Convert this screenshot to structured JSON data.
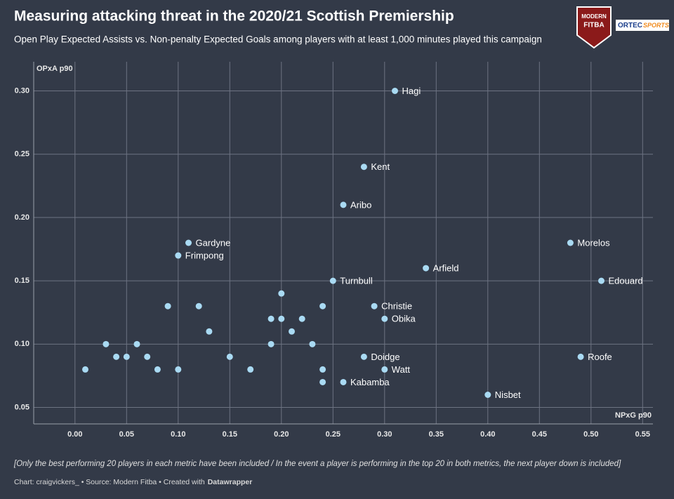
{
  "chart_data": {
    "type": "scatter",
    "title": "Measuring attacking threat in the 2020/21 Scottish Premiership",
    "subtitle": "Open Play Expected Assists vs. Non-penalty Expected Goals among players with at least 1,000 minutes played this campaign",
    "x_label": "NPxG p90",
    "y_label": "OPxA p90",
    "x": [
      0.31,
      0.28,
      0.26,
      0.11,
      0.1,
      0.48,
      0.34,
      0.25,
      0.51,
      0.29,
      0.3,
      0.28,
      0.3,
      0.26,
      0.4,
      0.49,
      0.01,
      0.03,
      0.04,
      0.05,
      0.06,
      0.07,
      0.08,
      0.09,
      0.1,
      0.12,
      0.13,
      0.15,
      0.17,
      0.19,
      0.19,
      0.2,
      0.2,
      0.21,
      0.22,
      0.23,
      0.24,
      0.24,
      0.24
    ],
    "values": [
      0.3,
      0.24,
      0.21,
      0.18,
      0.17,
      0.18,
      0.16,
      0.15,
      0.15,
      0.13,
      0.12,
      0.09,
      0.08,
      0.07,
      0.06,
      0.09,
      0.08,
      0.1,
      0.09,
      0.09,
      0.1,
      0.09,
      0.08,
      0.13,
      0.08,
      0.13,
      0.11,
      0.09,
      0.08,
      0.12,
      0.1,
      0.14,
      0.12,
      0.11,
      0.12,
      0.1,
      0.13,
      0.08,
      0.07
    ],
    "labels": [
      "Hagi",
      "Kent",
      "Aribo",
      "Gardyne",
      "Frimpong",
      "Morelos",
      "Arfield",
      "Turnbull",
      "Edouard",
      "Christie",
      "Obika",
      "Doidge",
      "Watt",
      "Kabamba",
      "Nisbet",
      "Roofe",
      null,
      null,
      null,
      null,
      null,
      null,
      null,
      null,
      null,
      null,
      null,
      null,
      null,
      null,
      null,
      null,
      null,
      null,
      null,
      null,
      null,
      null,
      null
    ],
    "color": "#a9daf3",
    "xlim": [
      -0.04,
      0.56
    ],
    "ylim": [
      0.037,
      0.323
    ],
    "xticks": [
      {
        "value": 0,
        "label": "0.00"
      },
      0.05,
      {
        "value": 0.1,
        "label": "0.10"
      },
      0.15,
      {
        "value": 0.2,
        "label": "0.20"
      },
      0.25,
      {
        "value": 0.3,
        "label": "0.30"
      },
      0.35,
      {
        "value": 0.4,
        "label": "0.40"
      },
      0.45,
      {
        "value": 0.5,
        "label": "0.50"
      },
      0.55
    ],
    "yticks": [
      0.05,
      {
        "value": 0.1,
        "label": "0.10"
      },
      0.15,
      {
        "value": 0.2,
        "label": "0.20"
      },
      0.25,
      {
        "value": 0.3,
        "label": "0.30"
      }
    ],
    "grid": true,
    "note": "[Only the best performing 20 players in each metric have been included / In the event a player is performing in the top 20 in both metrics, the next player down is included]",
    "credits": "Chart: craigvickers_ • Source: Modern Fitba • Created with",
    "credits_tool": "Datawrapper"
  },
  "logos": {
    "left_line1": "MODERN",
    "left_line2": "FITBA",
    "right_a": "ORTEC",
    "right_b": "SPORTS"
  }
}
